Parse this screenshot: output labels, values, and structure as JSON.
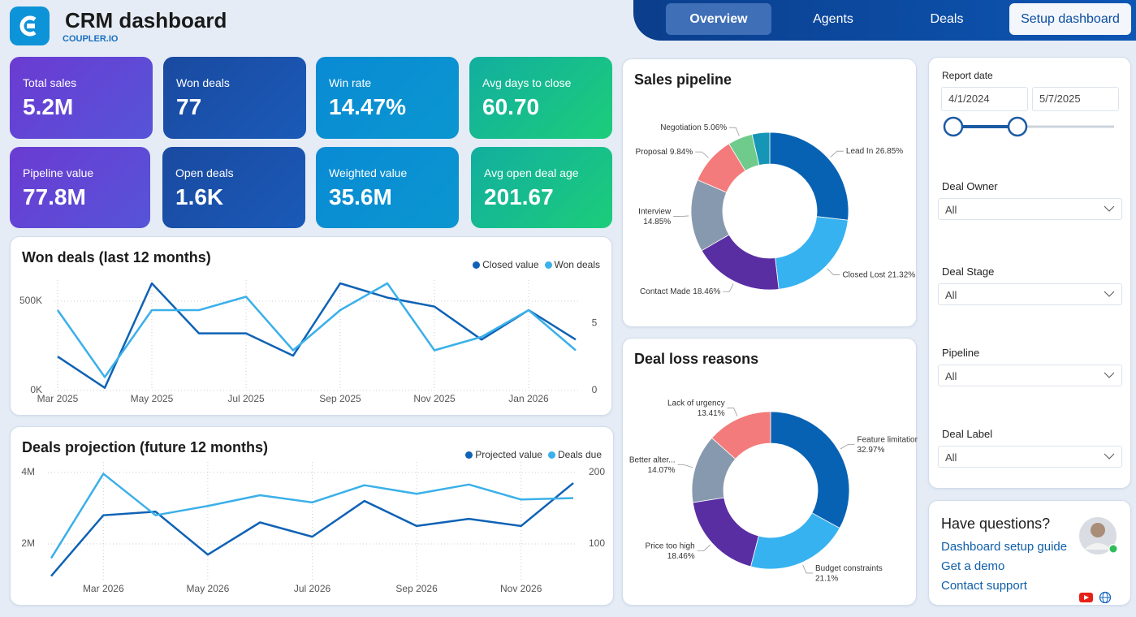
{
  "header": {
    "title": "CRM dashboard",
    "brand": "COUPLER.IO"
  },
  "nav": {
    "tabs": [
      "Overview",
      "Agents",
      "Deals"
    ],
    "button": "Setup dashboard"
  },
  "kpis": [
    {
      "label": "Total sales",
      "value": "5.2M"
    },
    {
      "label": "Won deals",
      "value": "77"
    },
    {
      "label": "Win rate",
      "value": "14.47%"
    },
    {
      "label": "Avg days to close",
      "value": "60.70"
    },
    {
      "label": "Pipeline value",
      "value": "77.8M"
    },
    {
      "label": "Open deals",
      "value": "1.6K"
    },
    {
      "label": "Weighted value",
      "value": "35.6M"
    },
    {
      "label": "Avg open deal age",
      "value": "201.67"
    }
  ],
  "chart_data": [
    {
      "type": "line",
      "title": "Won deals (last 12 months)",
      "categories": [
        "Mar 2025",
        null,
        "May 2025",
        null,
        "Jul 2025",
        null,
        "Sep 2025",
        null,
        "Nov 2025",
        null,
        "Jan 2026",
        null
      ],
      "series": [
        {
          "name": "Closed value",
          "color": "#0f62b5",
          "values": [
            190000,
            15000,
            600000,
            320000,
            320000,
            195000,
            600000,
            520000,
            470000,
            285000,
            450000,
            285000
          ]
        },
        {
          "name": "Won deals",
          "color": "#3bb0ea",
          "axis": "y2",
          "values": [
            6,
            1,
            6,
            6,
            7,
            3,
            6,
            8,
            3,
            4,
            6,
            3
          ]
        }
      ],
      "ylim": [
        0,
        600000
      ],
      "yticks": [
        {
          "value": 0,
          "label": "0K"
        },
        {
          "value": 500000,
          "label": "500K"
        }
      ],
      "y2lim": [
        0,
        8
      ],
      "y2ticks": [
        0,
        5
      ],
      "grid": true
    },
    {
      "type": "line",
      "title": "Deals projection (future 12 months)",
      "categories": [
        null,
        "Mar 2026",
        null,
        "May 2026",
        null,
        "Jul 2026",
        null,
        "Sep 2026",
        null,
        "Nov 2026",
        null
      ],
      "series": [
        {
          "name": "Projected value",
          "color": "#0f62b5",
          "values": [
            1100000,
            2800000,
            2900000,
            1700000,
            2600000,
            2200000,
            3200000,
            2500000,
            2700000,
            2500000,
            3700000
          ]
        },
        {
          "name": "Deals due",
          "color": "#3bb0ea",
          "axis": "y2",
          "values": [
            80,
            198,
            140,
            153,
            168,
            158,
            182,
            170,
            183,
            162,
            164
          ]
        }
      ],
      "ylim": [
        1000000,
        4200000
      ],
      "yticks": [
        {
          "value": 2000000,
          "label": "2M"
        },
        {
          "value": 4000000,
          "label": "4M"
        }
      ],
      "y2lim": [
        50,
        210
      ],
      "y2ticks": [
        100,
        200
      ],
      "grid": true
    },
    {
      "type": "pie",
      "title": "Sales pipeline",
      "donut": true,
      "categories": [
        "Lead In",
        "Closed Lost",
        "Contact Made",
        "Interview",
        "Proposal",
        "Negotiation",
        null
      ],
      "values": [
        26.85,
        21.32,
        18.46,
        14.85,
        9.84,
        5.06,
        3.62
      ],
      "value_labels": [
        "26.85%",
        "21.32%",
        "18.46%",
        "14.85%",
        "9.84%",
        "5.06%",
        null
      ],
      "colors": [
        "#0862b3",
        "#36b2f0",
        "#5a2ea3",
        "#8799ae",
        "#f47b7b",
        "#6fcb8c",
        "#1596b6"
      ]
    },
    {
      "type": "pie",
      "title": "Deal loss reasons",
      "donut": true,
      "categories": [
        "Feature limitations",
        "Budget constraints",
        "Price too high",
        "Better alter...",
        "Lack of urgency"
      ],
      "values": [
        32.97,
        21.1,
        18.46,
        14.07,
        13.41
      ],
      "value_labels": [
        "32.97%",
        "21.1%",
        "18.46%",
        "14.07%",
        "13.41%"
      ],
      "colors": [
        "#0862b3",
        "#36b2f0",
        "#5a2ea3",
        "#8799ae",
        "#f47b7b"
      ]
    }
  ],
  "filters": {
    "report_date": {
      "label": "Report date",
      "start": "4/1/2024",
      "end": "5/7/2025"
    },
    "dropdowns": [
      {
        "label": "Deal Owner",
        "value": "All"
      },
      {
        "label": "Deal Stage",
        "value": "All"
      },
      {
        "label": "Pipeline",
        "value": "All"
      },
      {
        "label": "Deal Label",
        "value": "All"
      }
    ]
  },
  "help": {
    "title": "Have questions?",
    "links": [
      "Dashboard setup guide",
      "Get a demo",
      "Contact support"
    ]
  }
}
